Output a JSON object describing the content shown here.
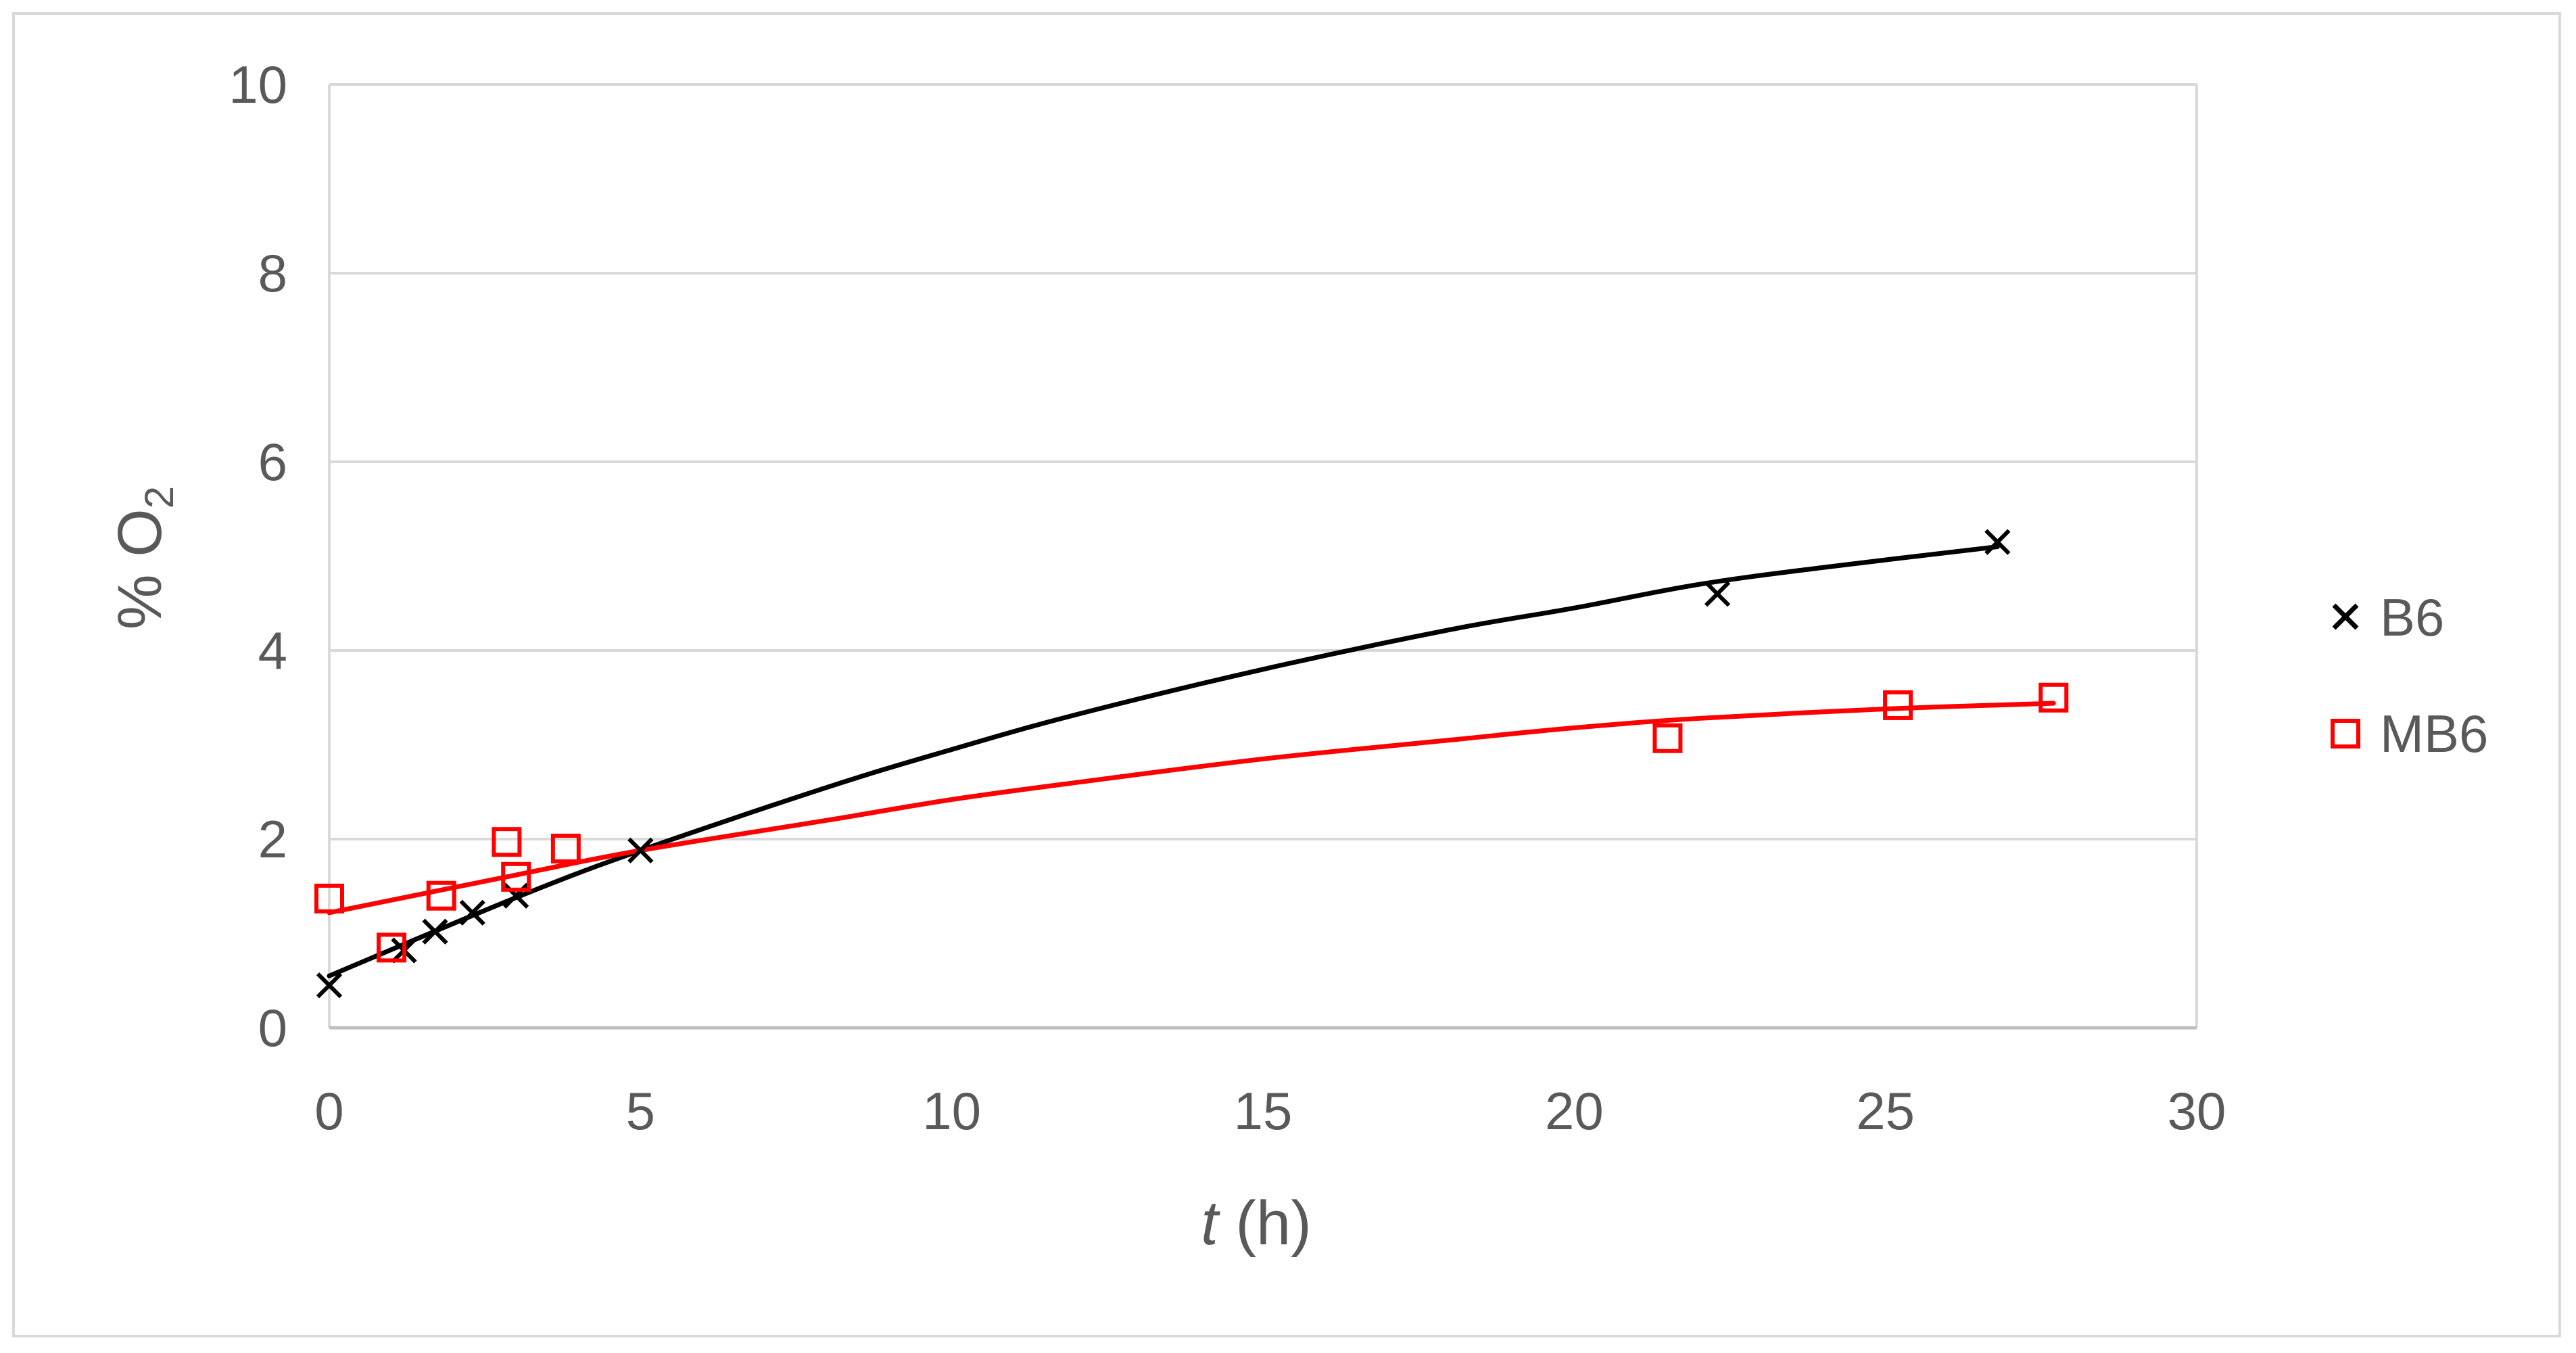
{
  "chart_data": {
    "type": "scatter",
    "title": "",
    "xlabel_italic": "t",
    "xlabel_rest": " (h)",
    "ylabel_main": "% O",
    "ylabel_sub": "2",
    "xlim": [
      0,
      30
    ],
    "ylim": [
      0,
      10
    ],
    "x_ticks": [
      0,
      5,
      10,
      15,
      20,
      25,
      30
    ],
    "y_ticks": [
      0,
      2,
      4,
      6,
      8,
      10
    ],
    "grid": "horizontal",
    "legend_position": "right",
    "series": [
      {
        "name": "B6",
        "marker": "x",
        "color": "#000000",
        "points": [
          {
            "x": 0,
            "y": 0.45
          },
          {
            "x": 1.2,
            "y": 0.82
          },
          {
            "x": 1.7,
            "y": 1.02
          },
          {
            "x": 2.3,
            "y": 1.22
          },
          {
            "x": 3.0,
            "y": 1.4
          },
          {
            "x": 5.0,
            "y": 1.88
          },
          {
            "x": 22.3,
            "y": 4.6
          },
          {
            "x": 26.8,
            "y": 5.15
          }
        ],
        "trend": [
          {
            "x": 0,
            "y": 0.55
          },
          {
            "x": 3,
            "y": 1.38
          },
          {
            "x": 5,
            "y": 1.88
          },
          {
            "x": 8,
            "y": 2.55
          },
          {
            "x": 10,
            "y": 2.95
          },
          {
            "x": 12,
            "y": 3.32
          },
          {
            "x": 15,
            "y": 3.8
          },
          {
            "x": 18,
            "y": 4.22
          },
          {
            "x": 20,
            "y": 4.45
          },
          {
            "x": 22,
            "y": 4.7
          },
          {
            "x": 24,
            "y": 4.88
          },
          {
            "x": 26.8,
            "y": 5.1
          }
        ]
      },
      {
        "name": "MB6",
        "marker": "square",
        "color": "#ff0000",
        "points": [
          {
            "x": 0,
            "y": 1.37
          },
          {
            "x": 1.0,
            "y": 0.85
          },
          {
            "x": 1.8,
            "y": 1.4
          },
          {
            "x": 2.85,
            "y": 1.97
          },
          {
            "x": 3.0,
            "y": 1.6
          },
          {
            "x": 3.8,
            "y": 1.9
          },
          {
            "x": 21.5,
            "y": 3.07
          },
          {
            "x": 25.2,
            "y": 3.42
          },
          {
            "x": 27.7,
            "y": 3.5
          }
        ],
        "trend": [
          {
            "x": 0,
            "y": 1.22
          },
          {
            "x": 3,
            "y": 1.62
          },
          {
            "x": 5,
            "y": 1.88
          },
          {
            "x": 8,
            "y": 2.2
          },
          {
            "x": 10,
            "y": 2.42
          },
          {
            "x": 12,
            "y": 2.6
          },
          {
            "x": 15,
            "y": 2.85
          },
          {
            "x": 18,
            "y": 3.05
          },
          {
            "x": 20,
            "y": 3.18
          },
          {
            "x": 22,
            "y": 3.28
          },
          {
            "x": 25,
            "y": 3.38
          },
          {
            "x": 27.7,
            "y": 3.44
          }
        ]
      }
    ]
  }
}
